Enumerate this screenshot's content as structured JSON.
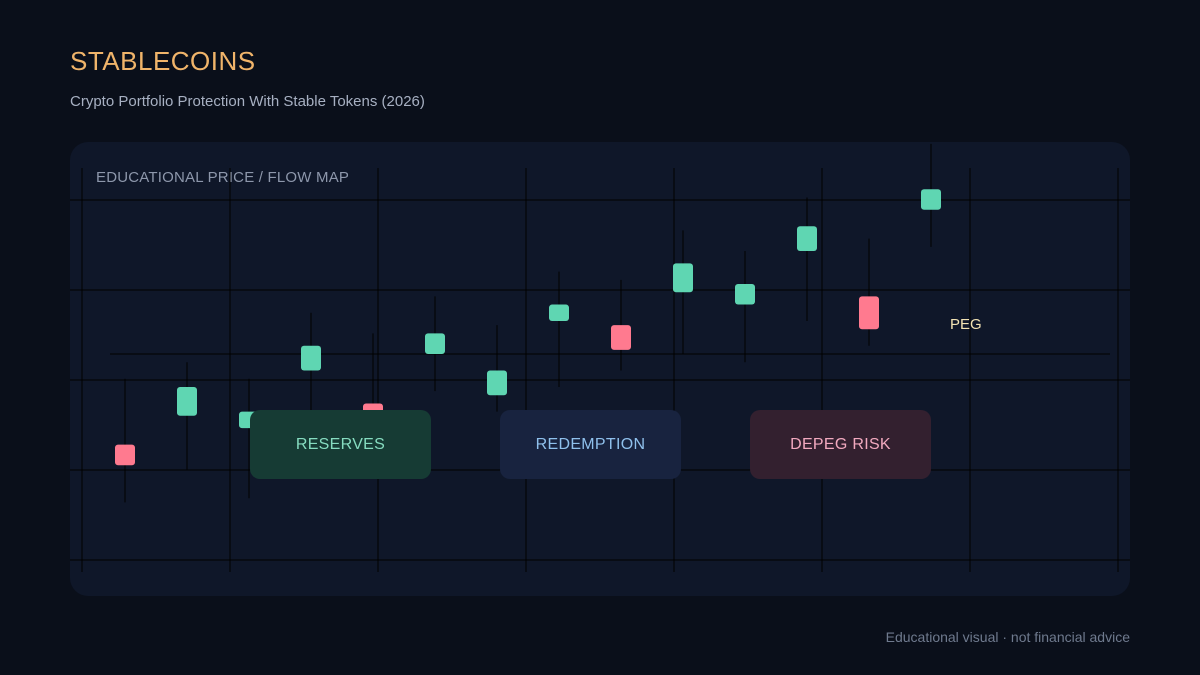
{
  "header": {
    "title": "STABLECOINS",
    "subtitle": "Crypto Portfolio Protection With Stable Tokens (2026)"
  },
  "panel": {
    "label": "EDUCATIONAL PRICE / FLOW MAP"
  },
  "chart_data": {
    "type": "candlestick",
    "ylim": [
      0,
      100
    ],
    "peg": {
      "label": "PEG",
      "value": 50
    },
    "colors": {
      "up": "#5fd6b2",
      "down": "#ff7a8f",
      "wick": "#000000",
      "grid": "#000000",
      "peg_line": "#000000"
    },
    "candles": [
      {
        "dir": "down",
        "open": 28,
        "close": 23,
        "high": 44,
        "low": 14
      },
      {
        "dir": "up",
        "open": 35,
        "close": 42,
        "high": 48,
        "low": 22
      },
      {
        "dir": "up",
        "open": 32,
        "close": 36,
        "high": 44,
        "low": 15
      },
      {
        "dir": "up",
        "open": 46,
        "close": 52,
        "high": 60,
        "low": 35
      },
      {
        "dir": "down",
        "open": 38,
        "close": 32,
        "high": 55,
        "low": 25
      },
      {
        "dir": "up",
        "open": 50,
        "close": 55,
        "high": 64,
        "low": 41
      },
      {
        "dir": "up",
        "open": 40,
        "close": 46,
        "high": 57,
        "low": 36
      },
      {
        "dir": "up",
        "open": 58,
        "close": 62,
        "high": 70,
        "low": 42
      },
      {
        "dir": "down",
        "open": 57,
        "close": 51,
        "high": 68,
        "low": 46
      },
      {
        "dir": "up",
        "open": 65,
        "close": 72,
        "high": 80,
        "low": 50
      },
      {
        "dir": "up",
        "open": 62,
        "close": 67,
        "high": 75,
        "low": 48
      },
      {
        "dir": "up",
        "open": 75,
        "close": 81,
        "high": 88,
        "low": 58
      },
      {
        "dir": "down",
        "open": 64,
        "close": 56,
        "high": 78,
        "low": 52
      },
      {
        "dir": "up",
        "open": 85,
        "close": 90,
        "high": 101,
        "low": 76
      }
    ]
  },
  "tags": {
    "reserves": "RESERVES",
    "redemption": "REDEMPTION",
    "depeg": "DEPEG RISK"
  },
  "footer": {
    "note": "Educational visual · not financial advice"
  }
}
